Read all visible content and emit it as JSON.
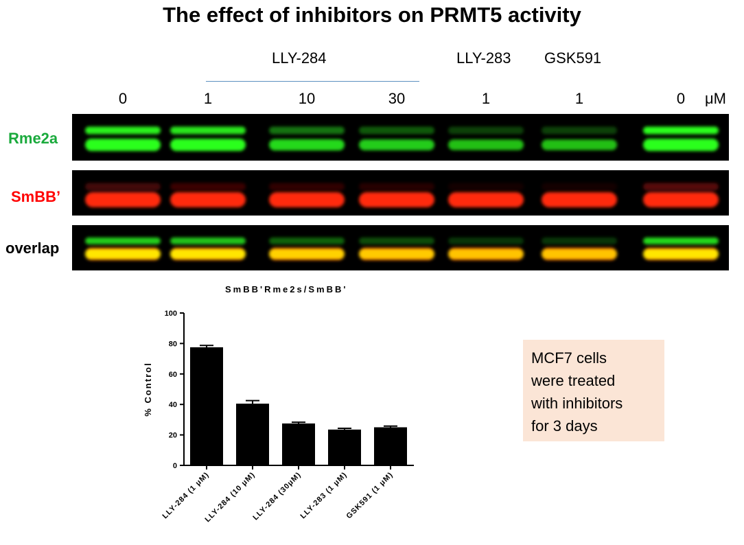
{
  "title": "The effect of inhibitors on PRMT5 activity",
  "groups": [
    "LLY-284",
    "LLY-283",
    "GSK591"
  ],
  "concentrations": [
    "0",
    "1",
    "10",
    "30",
    "1",
    "1",
    "0"
  ],
  "unit": "μM",
  "blot_rows": [
    {
      "label": "Rme2a",
      "color": "#1aaa3c"
    },
    {
      "label": "SmBB’",
      "color": "#ff0000"
    },
    {
      "label": "overlap",
      "color": "#000000"
    }
  ],
  "colors": {
    "rme2a_band": "#2bff1e",
    "smbb_band": "#ff2a10",
    "overlap_band": "#ffee00",
    "note_bg": "#fbe5d6",
    "group_line": "#5b8fbf"
  },
  "note": {
    "lines": [
      "MCF7 cells",
      "were treated",
      "with inhibitors",
      "for 3 days"
    ]
  },
  "chart_data": {
    "type": "bar",
    "title": "SmBB'Rme2s/SmBB'",
    "ylabel": "% Control",
    "xlabel": "",
    "categories": [
      "LLY-284 (1 μM)",
      "LLY-284 (10 μM)",
      "LLY-284 (30μM)",
      "LLY-283 (1 μM)",
      "GSK591 (1 μM)"
    ],
    "values": [
      77.5,
      40.5,
      27.5,
      23.5,
      25
    ],
    "errors": [
      1.2,
      2.0,
      0.8,
      0.8,
      0.8
    ],
    "yticks": [
      0,
      20,
      40,
      60,
      80,
      100
    ],
    "ylim": [
      0,
      100
    ],
    "bar_color": "#000000",
    "grid": false
  }
}
